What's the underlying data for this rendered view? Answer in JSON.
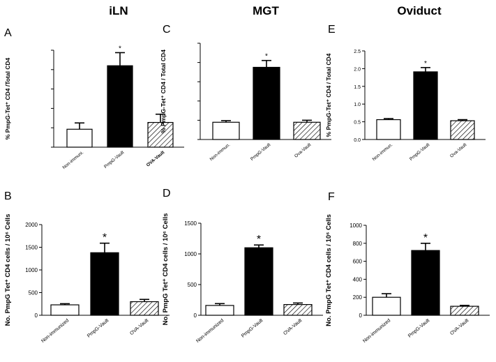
{
  "columns": [
    {
      "key": "iln",
      "title": "iLN"
    },
    {
      "key": "mgt",
      "title": "MGT"
    },
    {
      "key": "oviduct",
      "title": "Oviduct"
    }
  ],
  "chart_data": [
    {
      "panel": "A",
      "type": "bar",
      "tissue": "iLN",
      "ylabel": "% PmpG-Tet⁺ CD4 /Total CD4",
      "categories": [
        "Non-immuni.",
        "PmpG-Vault",
        "OVA-Vault"
      ],
      "values": [
        0.37,
        1.68,
        0.51
      ],
      "errors": [
        0.13,
        0.27,
        0.17
      ],
      "fills": [
        "white",
        "black",
        "hatch"
      ],
      "significance": [
        "",
        "*",
        ""
      ],
      "ylim": [
        0,
        2
      ],
      "yticks": [],
      "grid": false
    },
    {
      "panel": "C",
      "type": "bar",
      "tissue": "MGT",
      "ylabel": "% PmpG-Tet⁺ CD4 / Total CD4",
      "categories": [
        "Non-immun.",
        "PmpG-Vault",
        "Ova-Vault"
      ],
      "values": [
        0.43,
        1.8,
        0.43
      ],
      "errors": [
        0.04,
        0.17,
        0.05
      ],
      "fills": [
        "white",
        "black",
        "hatch"
      ],
      "significance": [
        "",
        "*",
        ""
      ],
      "ylim": [
        0,
        2.4
      ],
      "yticks": [],
      "grid": false
    },
    {
      "panel": "E",
      "type": "bar",
      "tissue": "Oviduct",
      "ylabel": "% PmpG-Tet⁺ CD4 / Total CD4",
      "categories": [
        "Non-immun.",
        "PmpG-Vault",
        "Ova-Vault"
      ],
      "values": [
        0.56,
        1.91,
        0.53
      ],
      "errors": [
        0.03,
        0.12,
        0.03
      ],
      "fills": [
        "white",
        "black",
        "hatch"
      ],
      "significance": [
        "",
        "*",
        ""
      ],
      "ylim": [
        0,
        2.5
      ],
      "yticks": [
        "0.0",
        "0.5",
        "1.0",
        "1.5",
        "2.0",
        "2.5"
      ],
      "grid": false
    },
    {
      "panel": "B",
      "type": "bar",
      "tissue": "iLN",
      "ylabel": "No. PmpG Tet⁺ CD4 cells / 10⁶ Cells",
      "categories": [
        "Non-immunized",
        "PmpG-Vault",
        "OVA-Vault"
      ],
      "values": [
        230,
        1380,
        300
      ],
      "errors": [
        25,
        210,
        50
      ],
      "fills": [
        "white",
        "black",
        "hatch"
      ],
      "significance": [
        "",
        "*",
        ""
      ],
      "ylim": [
        0,
        2000
      ],
      "yticks": [
        "0",
        "500",
        "1000",
        "1500",
        "2000"
      ],
      "grid": false
    },
    {
      "panel": "D",
      "type": "bar",
      "tissue": "MGT",
      "ylabel": "No. PmpG Tet⁺ CD4 cells / 10⁶ Cells",
      "categories": [
        "Non-immunized",
        "PmpG-Vault",
        "OVA-Vault"
      ],
      "values": [
        160,
        1100,
        175
      ],
      "errors": [
        30,
        45,
        25
      ],
      "fills": [
        "white",
        "black",
        "hatch"
      ],
      "significance": [
        "",
        "*",
        ""
      ],
      "ylim": [
        0,
        1500
      ],
      "yticks": [
        "0",
        "500",
        "1000",
        "1500"
      ],
      "grid": false
    },
    {
      "panel": "F",
      "type": "bar",
      "tissue": "Oviduct",
      "ylabel": "No. PmpG Tet⁺ CD4 cells / 10⁶ Cells",
      "categories": [
        "Non-immunized",
        "PmpG-Vault",
        "OVA-Vault"
      ],
      "values": [
        200,
        720,
        100
      ],
      "errors": [
        40,
        80,
        10
      ],
      "fills": [
        "white",
        "black",
        "hatch"
      ],
      "significance": [
        "",
        "*",
        ""
      ],
      "ylim": [
        0,
        1000
      ],
      "yticks": [
        "0",
        "200",
        "400",
        "600",
        "800",
        "1000"
      ],
      "grid": false
    }
  ]
}
